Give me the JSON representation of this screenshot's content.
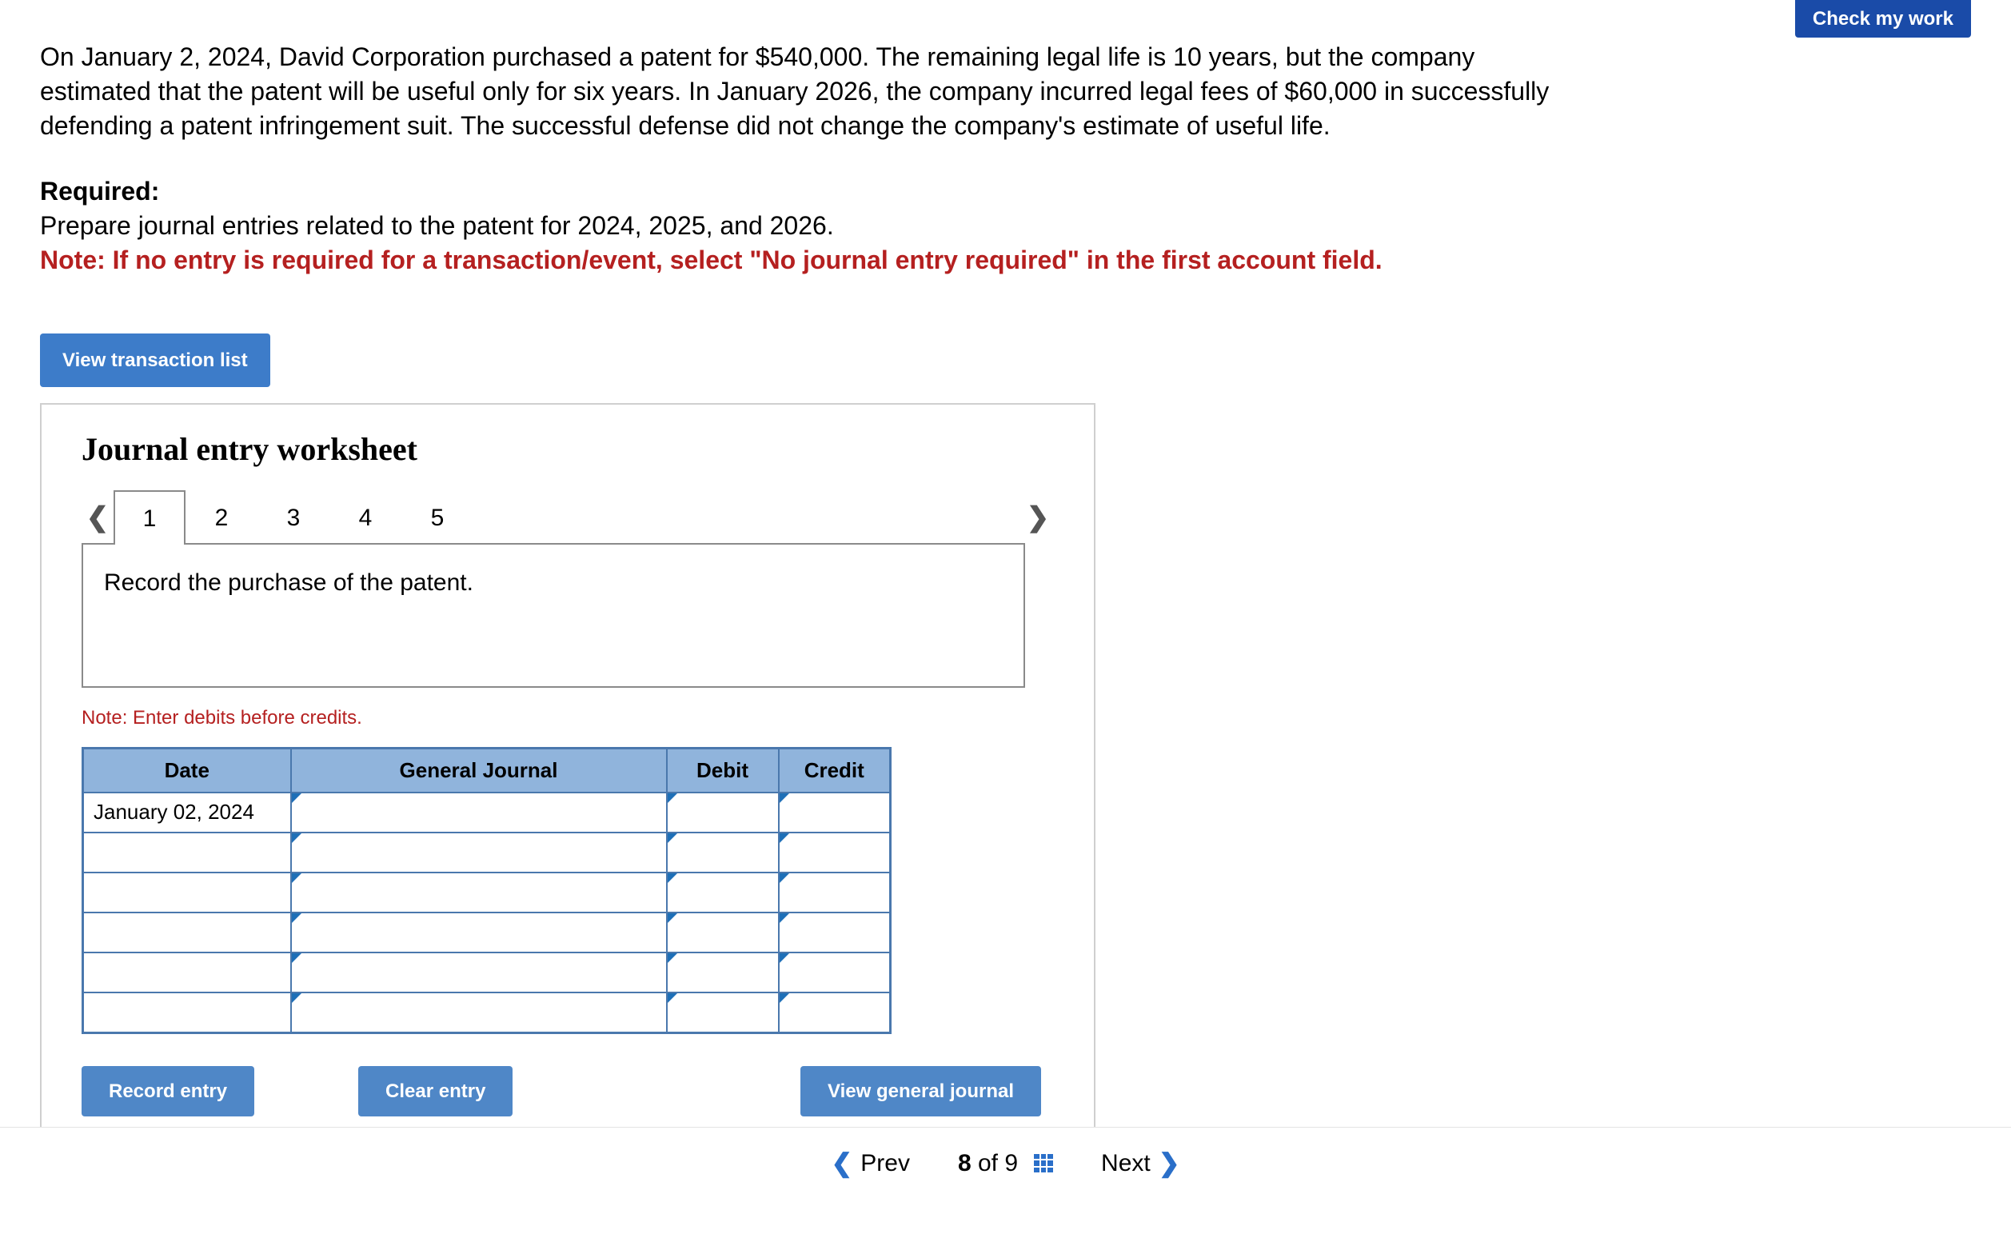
{
  "top_button": {
    "label": "Check my work"
  },
  "problem": {
    "text": "On January 2, 2024, David Corporation purchased a patent for $540,000. The remaining legal life is 10 years, but the company estimated that the patent will be useful only for six years. In January 2026, the company incurred legal fees of $60,000 in successfully defending a patent infringement suit. The successful defense did not change the company's estimate of useful life."
  },
  "required": {
    "label": "Required:",
    "line1": "Prepare journal entries related to the patent for 2024, 2025, and 2026.",
    "note": "Note: If no entry is required for a transaction/event, select \"No journal entry required\" in the first account field."
  },
  "buttons": {
    "view_transaction_list": "View transaction list",
    "record_entry": "Record entry",
    "clear_entry": "Clear entry",
    "view_general_journal": "View general journal"
  },
  "worksheet": {
    "title": "Journal entry worksheet",
    "tabs": [
      "1",
      "2",
      "3",
      "4",
      "5"
    ],
    "active_tab_index": 0,
    "instruction": "Record the purchase of the patent.",
    "credits_note": "Note: Enter debits before credits.",
    "columns": {
      "date": "Date",
      "general_journal": "General Journal",
      "debit": "Debit",
      "credit": "Credit"
    },
    "rows": [
      {
        "date": "January 02, 2024",
        "gj": "",
        "debit": "",
        "credit": ""
      },
      {
        "date": "",
        "gj": "",
        "debit": "",
        "credit": ""
      },
      {
        "date": "",
        "gj": "",
        "debit": "",
        "credit": ""
      },
      {
        "date": "",
        "gj": "",
        "debit": "",
        "credit": ""
      },
      {
        "date": "",
        "gj": "",
        "debit": "",
        "credit": ""
      },
      {
        "date": "",
        "gj": "",
        "debit": "",
        "credit": ""
      }
    ]
  },
  "footer": {
    "prev": "Prev",
    "next": "Next",
    "current": "8",
    "of_word": "of",
    "total": "9"
  },
  "colors": {
    "primary_blue": "#3d7cc9",
    "dark_blue": "#1a4ba8",
    "table_border": "#4a78ad",
    "table_header_bg": "#90b4dc",
    "note_red": "#b52020"
  }
}
